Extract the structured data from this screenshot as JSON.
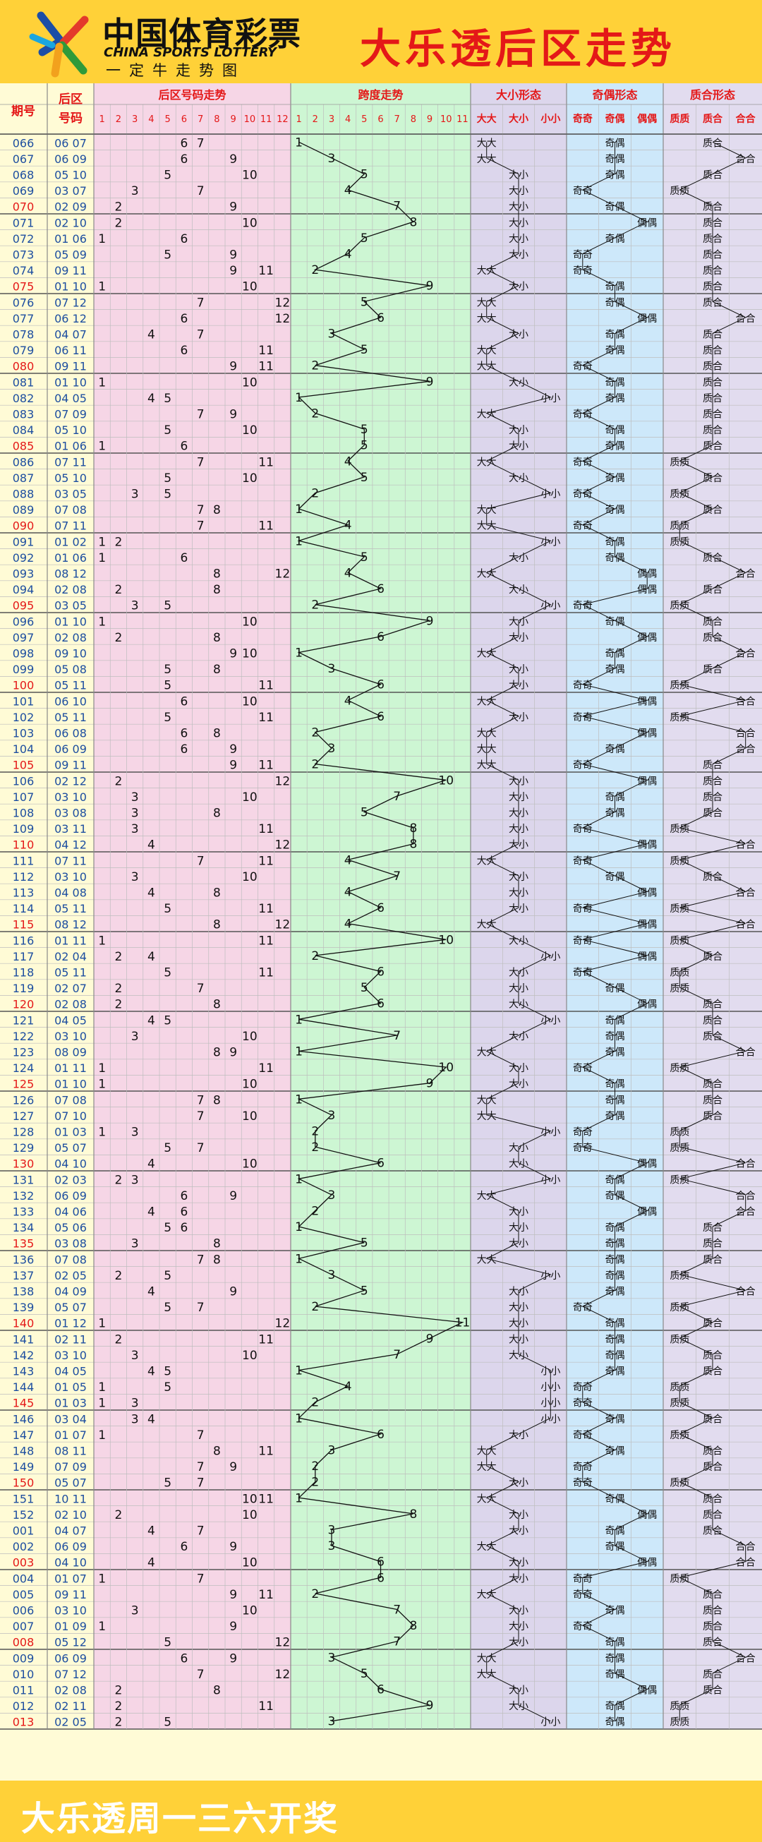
{
  "header": {
    "brand_cn": "中国体育彩票",
    "brand_en": "CHINA SPORTS LOTTERY",
    "brand_slogan": "一定牛走势图",
    "title": "大乐透后区走势"
  },
  "footer": {
    "text": "大乐透周一三六开奖"
  },
  "colors": {
    "header_bg": "#ffd138",
    "accent_red": "#e41818",
    "zone_id": "#fffbd6",
    "zone_number": "#f6d6e6",
    "zone_span": "#cdf6d3",
    "zone_size": "#dcd6ec",
    "zone_parity": "#cde8fa",
    "zone_prime": "#e2dcef",
    "grid": "#bdbdbd",
    "line": "#111111"
  },
  "icons": {
    "logo": "china-sports-lottery-logo"
  },
  "chart_data": {
    "type": "table",
    "title": "大乐透后区走势",
    "columns": {
      "issue": "期号",
      "back": "后区号码",
      "trend": "后区号码走势",
      "span": "跨度走势",
      "size": "大小形态",
      "parity": "奇偶形态",
      "prime": "质合形态"
    },
    "trend_cols": [
      "1",
      "2",
      "3",
      "4",
      "5",
      "6",
      "7",
      "8",
      "9",
      "10",
      "11",
      "12"
    ],
    "span_cols": [
      "1",
      "2",
      "3",
      "4",
      "5",
      "6",
      "7",
      "8",
      "9",
      "10",
      "11"
    ],
    "size_cols": [
      "大大",
      "大小",
      "小小"
    ],
    "parity_cols": [
      "奇奇",
      "奇偶",
      "偶偶"
    ],
    "prime_cols": [
      "质质",
      "质合",
      "合合"
    ],
    "rows": [
      {
        "issue": "066",
        "nums": [
          6,
          7
        ]
      },
      {
        "issue": "067",
        "nums": [
          6,
          9
        ]
      },
      {
        "issue": "068",
        "nums": [
          5,
          10
        ]
      },
      {
        "issue": "069",
        "nums": [
          3,
          7
        ]
      },
      {
        "issue": "070",
        "nums": [
          2,
          9
        ]
      },
      {
        "issue": "071",
        "nums": [
          2,
          10
        ]
      },
      {
        "issue": "072",
        "nums": [
          1,
          6
        ]
      },
      {
        "issue": "073",
        "nums": [
          5,
          9
        ]
      },
      {
        "issue": "074",
        "nums": [
          9,
          11
        ]
      },
      {
        "issue": "075",
        "nums": [
          1,
          10
        ]
      },
      {
        "issue": "076",
        "nums": [
          7,
          12
        ]
      },
      {
        "issue": "077",
        "nums": [
          6,
          12
        ]
      },
      {
        "issue": "078",
        "nums": [
          4,
          7
        ]
      },
      {
        "issue": "079",
        "nums": [
          6,
          11
        ]
      },
      {
        "issue": "080",
        "nums": [
          9,
          11
        ]
      },
      {
        "issue": "081",
        "nums": [
          1,
          10
        ]
      },
      {
        "issue": "082",
        "nums": [
          4,
          5
        ]
      },
      {
        "issue": "083",
        "nums": [
          7,
          9
        ]
      },
      {
        "issue": "084",
        "nums": [
          5,
          10
        ]
      },
      {
        "issue": "085",
        "nums": [
          1,
          6
        ]
      },
      {
        "issue": "086",
        "nums": [
          7,
          11
        ]
      },
      {
        "issue": "087",
        "nums": [
          5,
          10
        ]
      },
      {
        "issue": "088",
        "nums": [
          3,
          5
        ]
      },
      {
        "issue": "089",
        "nums": [
          7,
          8
        ]
      },
      {
        "issue": "090",
        "nums": [
          7,
          11
        ]
      },
      {
        "issue": "091",
        "nums": [
          1,
          2
        ]
      },
      {
        "issue": "092",
        "nums": [
          1,
          6
        ]
      },
      {
        "issue": "093",
        "nums": [
          8,
          12
        ]
      },
      {
        "issue": "094",
        "nums": [
          2,
          8
        ]
      },
      {
        "issue": "095",
        "nums": [
          3,
          5
        ]
      },
      {
        "issue": "096",
        "nums": [
          1,
          10
        ]
      },
      {
        "issue": "097",
        "nums": [
          2,
          8
        ]
      },
      {
        "issue": "098",
        "nums": [
          9,
          10
        ]
      },
      {
        "issue": "099",
        "nums": [
          5,
          8
        ]
      },
      {
        "issue": "100",
        "nums": [
          5,
          11
        ]
      },
      {
        "issue": "101",
        "nums": [
          6,
          10
        ]
      },
      {
        "issue": "102",
        "nums": [
          5,
          11
        ]
      },
      {
        "issue": "103",
        "nums": [
          6,
          8
        ]
      },
      {
        "issue": "104",
        "nums": [
          6,
          9
        ]
      },
      {
        "issue": "105",
        "nums": [
          9,
          11
        ]
      },
      {
        "issue": "106",
        "nums": [
          2,
          12
        ]
      },
      {
        "issue": "107",
        "nums": [
          3,
          10
        ]
      },
      {
        "issue": "108",
        "nums": [
          3,
          8
        ]
      },
      {
        "issue": "109",
        "nums": [
          3,
          11
        ]
      },
      {
        "issue": "110",
        "nums": [
          4,
          12
        ]
      },
      {
        "issue": "111",
        "nums": [
          7,
          11
        ]
      },
      {
        "issue": "112",
        "nums": [
          3,
          10
        ]
      },
      {
        "issue": "113",
        "nums": [
          4,
          8
        ]
      },
      {
        "issue": "114",
        "nums": [
          5,
          11
        ]
      },
      {
        "issue": "115",
        "nums": [
          8,
          12
        ]
      },
      {
        "issue": "116",
        "nums": [
          1,
          11
        ]
      },
      {
        "issue": "117",
        "nums": [
          2,
          4
        ]
      },
      {
        "issue": "118",
        "nums": [
          5,
          11
        ]
      },
      {
        "issue": "119",
        "nums": [
          2,
          7
        ]
      },
      {
        "issue": "120",
        "nums": [
          2,
          8
        ]
      },
      {
        "issue": "121",
        "nums": [
          4,
          5
        ]
      },
      {
        "issue": "122",
        "nums": [
          3,
          10
        ]
      },
      {
        "issue": "123",
        "nums": [
          8,
          9
        ]
      },
      {
        "issue": "124",
        "nums": [
          1,
          11
        ]
      },
      {
        "issue": "125",
        "nums": [
          1,
          10
        ]
      },
      {
        "issue": "126",
        "nums": [
          7,
          8
        ]
      },
      {
        "issue": "127",
        "nums": [
          7,
          10
        ]
      },
      {
        "issue": "128",
        "nums": [
          1,
          3
        ]
      },
      {
        "issue": "129",
        "nums": [
          5,
          7
        ]
      },
      {
        "issue": "130",
        "nums": [
          4,
          10
        ]
      },
      {
        "issue": "131",
        "nums": [
          2,
          3
        ]
      },
      {
        "issue": "132",
        "nums": [
          6,
          9
        ]
      },
      {
        "issue": "133",
        "nums": [
          4,
          6
        ]
      },
      {
        "issue": "134",
        "nums": [
          5,
          6
        ]
      },
      {
        "issue": "135",
        "nums": [
          3,
          8
        ]
      },
      {
        "issue": "136",
        "nums": [
          7,
          8
        ]
      },
      {
        "issue": "137",
        "nums": [
          2,
          5
        ]
      },
      {
        "issue": "138",
        "nums": [
          4,
          9
        ]
      },
      {
        "issue": "139",
        "nums": [
          5,
          7
        ]
      },
      {
        "issue": "140",
        "nums": [
          1,
          12
        ]
      },
      {
        "issue": "141",
        "nums": [
          2,
          11
        ]
      },
      {
        "issue": "142",
        "nums": [
          3,
          10
        ]
      },
      {
        "issue": "143",
        "nums": [
          4,
          5
        ]
      },
      {
        "issue": "144",
        "nums": [
          1,
          5
        ]
      },
      {
        "issue": "145",
        "nums": [
          1,
          3
        ]
      },
      {
        "issue": "146",
        "nums": [
          3,
          4
        ]
      },
      {
        "issue": "147",
        "nums": [
          1,
          7
        ]
      },
      {
        "issue": "148",
        "nums": [
          8,
          11
        ]
      },
      {
        "issue": "149",
        "nums": [
          7,
          9
        ]
      },
      {
        "issue": "150",
        "nums": [
          5,
          7
        ]
      },
      {
        "issue": "151",
        "nums": [
          10,
          11
        ]
      },
      {
        "issue": "152",
        "nums": [
          2,
          10
        ]
      },
      {
        "issue": "001",
        "nums": [
          4,
          7
        ]
      },
      {
        "issue": "002",
        "nums": [
          6,
          9
        ]
      },
      {
        "issue": "003",
        "nums": [
          4,
          10
        ]
      },
      {
        "issue": "004",
        "nums": [
          1,
          7
        ]
      },
      {
        "issue": "005",
        "nums": [
          9,
          11
        ]
      },
      {
        "issue": "006",
        "nums": [
          3,
          10
        ]
      },
      {
        "issue": "007",
        "nums": [
          1,
          9
        ]
      },
      {
        "issue": "008",
        "nums": [
          5,
          12
        ]
      },
      {
        "issue": "009",
        "nums": [
          6,
          9
        ]
      },
      {
        "issue": "010",
        "nums": [
          7,
          12
        ]
      },
      {
        "issue": "011",
        "nums": [
          2,
          8
        ]
      },
      {
        "issue": "012",
        "nums": [
          2,
          11
        ]
      },
      {
        "issue": "013",
        "nums": [
          2,
          5
        ]
      }
    ]
  }
}
